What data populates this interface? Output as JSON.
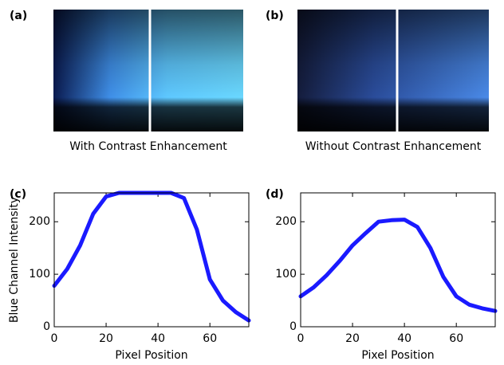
{
  "images": [
    {
      "label": "(a)",
      "caption": "With Contrast Enhancement"
    },
    {
      "label": "(b)",
      "caption": "Without Contrast Enhancement"
    }
  ],
  "chart_data": [
    {
      "type": "line",
      "label": "(c)",
      "x_label": "Pixel Position",
      "y_label": "Blue Channel Intensity",
      "x": [
        0,
        5,
        10,
        15,
        20,
        25,
        30,
        35,
        40,
        45,
        50,
        55,
        60,
        65,
        70,
        75
      ],
      "series": [
        {
          "color": "#1a1aff",
          "values": [
            78,
            110,
            155,
            215,
            248,
            255,
            255,
            255,
            255,
            255,
            245,
            185,
            90,
            50,
            28,
            12
          ]
        }
      ],
      "xlim": [
        0,
        75
      ],
      "xticks": [
        0,
        20,
        40,
        60
      ],
      "ylim": [
        0,
        255
      ],
      "yticks": [
        0,
        100,
        200
      ]
    },
    {
      "type": "line",
      "label": "(d)",
      "x_label": "Pixel Position",
      "x": [
        0,
        5,
        10,
        15,
        20,
        25,
        30,
        35,
        40,
        45,
        50,
        55,
        60,
        65,
        70,
        75
      ],
      "series": [
        {
          "color": "#1a1aff",
          "values": [
            58,
            75,
            98,
            125,
            155,
            178,
            200,
            203,
            204,
            190,
            150,
            95,
            58,
            42,
            35,
            30
          ]
        }
      ],
      "xlim": [
        0,
        75
      ],
      "xticks": [
        0,
        20,
        40,
        60
      ],
      "ylim": [
        0,
        255
      ],
      "yticks": [
        0,
        100,
        200
      ]
    }
  ]
}
